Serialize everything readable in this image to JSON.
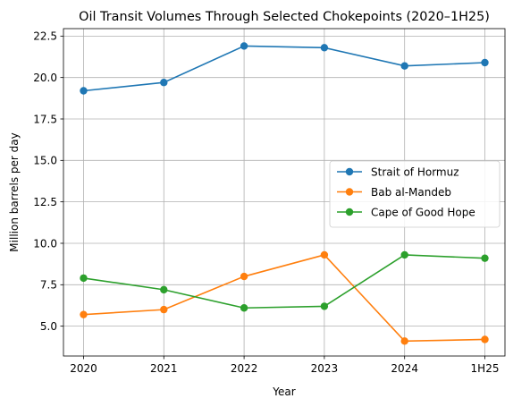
{
  "chart_data": {
    "type": "line",
    "title": "Oil Transit Volumes Through Selected Chokepoints (2020–1H25)",
    "xlabel": "Year",
    "ylabel": "Million barrels per day",
    "categories": [
      "2020",
      "2021",
      "2022",
      "2023",
      "2024",
      "1H25"
    ],
    "yticks": [
      "5.0",
      "7.5",
      "10.0",
      "12.5",
      "15.0",
      "17.5",
      "20.0",
      "22.5"
    ],
    "ylim": [
      3.2,
      22.95
    ],
    "grid": true,
    "legend_position": "center-right",
    "series": [
      {
        "name": "Strait of Hormuz",
        "color": "#1f77b4",
        "values": [
          19.2,
          19.7,
          21.9,
          21.8,
          20.7,
          20.9
        ]
      },
      {
        "name": "Bab al-Mandeb",
        "color": "#ff7f0e",
        "values": [
          5.7,
          6.0,
          8.0,
          9.3,
          4.1,
          4.2
        ]
      },
      {
        "name": "Cape of Good Hope",
        "color": "#2ca02c",
        "values": [
          7.9,
          7.2,
          6.1,
          6.2,
          9.3,
          9.1
        ]
      }
    ]
  }
}
